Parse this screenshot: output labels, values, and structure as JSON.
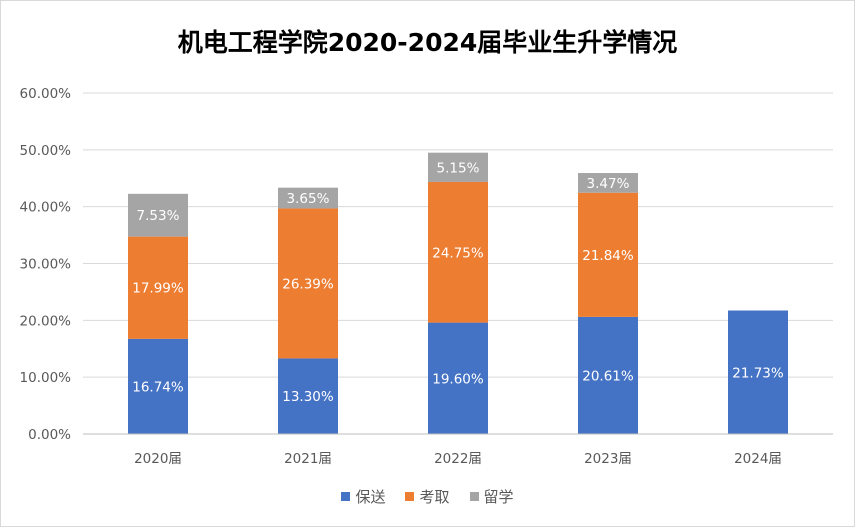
{
  "chart_data": {
    "type": "bar",
    "stacked": true,
    "title": "机电工程学院2020-2024届毕业生升学情况",
    "categories": [
      "2020届",
      "2021届",
      "2022届",
      "2023届",
      "2024届"
    ],
    "series": [
      {
        "name": "保送",
        "color": "#4472c4",
        "values": [
          16.74,
          13.3,
          19.6,
          20.61,
          21.73
        ],
        "labels": [
          "16.74%",
          "13.30%",
          "19.60%",
          "20.61%",
          "21.73%"
        ]
      },
      {
        "name": "考取",
        "color": "#ed7d31",
        "values": [
          17.99,
          26.39,
          24.75,
          21.84,
          null
        ],
        "labels": [
          "17.99%",
          "26.39%",
          "24.75%",
          "21.84%",
          ""
        ]
      },
      {
        "name": "留学",
        "color": "#a5a5a5",
        "values": [
          7.53,
          3.65,
          5.15,
          3.47,
          null
        ],
        "labels": [
          "7.53%",
          "3.65%",
          "5.15%",
          "3.47%",
          ""
        ]
      }
    ],
    "ylim": [
      0,
      60
    ],
    "yticks": [
      0,
      10,
      20,
      30,
      40,
      50,
      60
    ],
    "ytick_labels": [
      "0.00%",
      "10.00%",
      "20.00%",
      "30.00%",
      "40.00%",
      "50.00%",
      "60.00%"
    ],
    "xlabel": "",
    "ylabel": "",
    "grid": true,
    "legend_position": "bottom"
  }
}
